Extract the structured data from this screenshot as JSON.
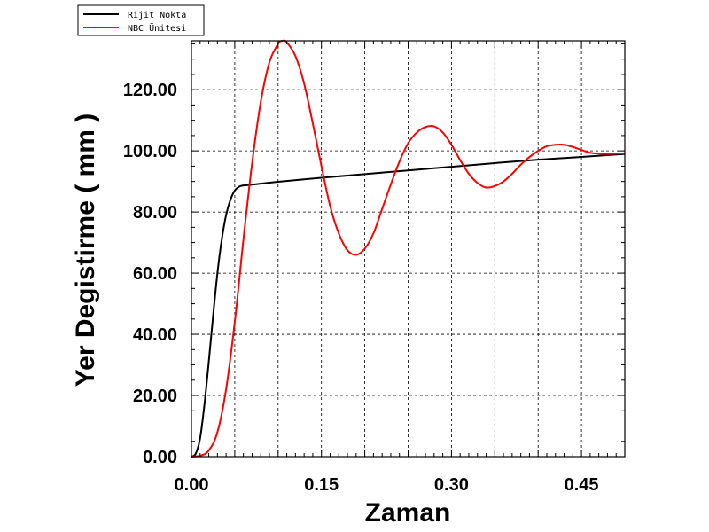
{
  "chart_data": {
    "type": "line",
    "xlabel": "Zaman",
    "ylabel": "Yer Degistirme ( mm )",
    "xlim": [
      0,
      0.5
    ],
    "ylim": [
      0,
      136
    ],
    "x_ticks": [
      0.0,
      0.15,
      0.3,
      0.45
    ],
    "x_tick_labels": [
      "0.00",
      "0.15",
      "0.30",
      "0.45"
    ],
    "y_ticks": [
      0,
      20,
      40,
      60,
      80,
      100,
      120
    ],
    "y_tick_labels": [
      "0.00",
      "20.00",
      "40.00",
      "60.00",
      "80.00",
      "100.00",
      "120.00"
    ],
    "grid": true,
    "legend_position": "top-left",
    "series": [
      {
        "name": "Rijit Nokta",
        "color": "#000000",
        "x": [
          0.0,
          0.005,
          0.01,
          0.015,
          0.02,
          0.025,
          0.03,
          0.035,
          0.04,
          0.045,
          0.05,
          0.055,
          0.06,
          0.065,
          0.1,
          0.15,
          0.2,
          0.25,
          0.3,
          0.35,
          0.4,
          0.45,
          0.5
        ],
        "y": [
          0.0,
          1.0,
          6.0,
          17.0,
          31.0,
          46.0,
          60.0,
          71.0,
          79.0,
          84.0,
          87.0,
          88.3,
          88.7,
          88.8,
          89.9,
          91.2,
          92.4,
          93.6,
          94.8,
          96.0,
          97.1,
          98.0,
          99.0
        ]
      },
      {
        "name": "NBC Ünitesi",
        "color": "#ff0000",
        "x": [
          0.0,
          0.01,
          0.02,
          0.03,
          0.04,
          0.05,
          0.06,
          0.07,
          0.08,
          0.09,
          0.1,
          0.105,
          0.11,
          0.12,
          0.13,
          0.14,
          0.15,
          0.16,
          0.17,
          0.18,
          0.19,
          0.2,
          0.21,
          0.22,
          0.23,
          0.24,
          0.25,
          0.26,
          0.27,
          0.28,
          0.29,
          0.3,
          0.31,
          0.32,
          0.33,
          0.34,
          0.35,
          0.36,
          0.37,
          0.38,
          0.39,
          0.4,
          0.41,
          0.42,
          0.43,
          0.44,
          0.45,
          0.46,
          0.47,
          0.48,
          0.49,
          0.5
        ],
        "y": [
          0.0,
          0.3,
          2.0,
          8.0,
          22.0,
          44.0,
          71.0,
          96.0,
          116.0,
          129.0,
          135.0,
          136.0,
          135.5,
          131.0,
          122.0,
          109.0,
          95.0,
          82.0,
          73.0,
          67.5,
          66.0,
          68.0,
          73.0,
          81.0,
          89.0,
          96.5,
          102.5,
          106.0,
          107.8,
          108.0,
          106.0,
          102.0,
          97.0,
          92.5,
          89.5,
          88.0,
          88.5,
          90.0,
          92.5,
          95.5,
          98.0,
          100.0,
          101.5,
          102.0,
          102.0,
          101.3,
          100.3,
          99.4,
          99.1,
          99.0,
          99.1,
          99.2
        ]
      }
    ]
  }
}
